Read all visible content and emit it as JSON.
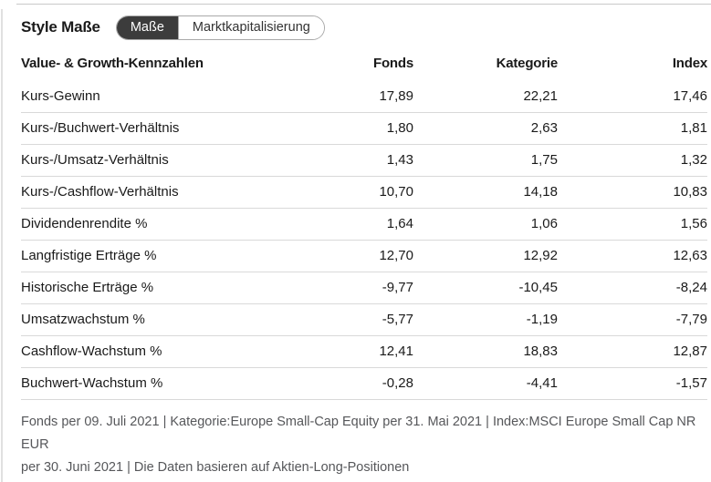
{
  "header": {
    "title": "Style Maße",
    "tabs": [
      {
        "label": "Maße",
        "active": true
      },
      {
        "label": "Marktkapitalisierung",
        "active": false
      }
    ]
  },
  "table": {
    "columns": [
      "Value- & Growth-Kennzahlen",
      "Fonds",
      "Kategorie",
      "Index"
    ],
    "rows": [
      {
        "label": "Kurs-Gewinn",
        "fonds": "17,89",
        "kategorie": "22,21",
        "index": "17,46"
      },
      {
        "label": "Kurs-/Buchwert-Verhältnis",
        "fonds": "1,80",
        "kategorie": "2,63",
        "index": "1,81"
      },
      {
        "label": "Kurs-/Umsatz-Verhältnis",
        "fonds": "1,43",
        "kategorie": "1,75",
        "index": "1,32"
      },
      {
        "label": "Kurs-/Cashflow-Verhältnis",
        "fonds": "10,70",
        "kategorie": "14,18",
        "index": "10,83"
      },
      {
        "label": "Dividendenrendite %",
        "fonds": "1,64",
        "kategorie": "1,06",
        "index": "1,56"
      },
      {
        "label": "Langfristige Erträge %",
        "fonds": "12,70",
        "kategorie": "12,92",
        "index": "12,63"
      },
      {
        "label": "Historische Erträge %",
        "fonds": "-9,77",
        "kategorie": "-10,45",
        "index": "-8,24"
      },
      {
        "label": "Umsatzwachstum %",
        "fonds": "-5,77",
        "kategorie": "-1,19",
        "index": "-7,79"
      },
      {
        "label": "Cashflow-Wachstum %",
        "fonds": "12,41",
        "kategorie": "18,83",
        "index": "12,87"
      },
      {
        "label": "Buchwert-Wachstum %",
        "fonds": "-0,28",
        "kategorie": "-4,41",
        "index": "-1,57"
      }
    ]
  },
  "footnote": {
    "lines": [
      "Fonds per 09. Juli 2021 | Kategorie:Europe Small-Cap Equity per 31. Mai 2021 | Index:MSCI Europe Small Cap NR EUR",
      "per 30. Juni 2021 | Die Daten basieren auf Aktien-Long-Positionen"
    ]
  },
  "colors": {
    "tab_active_bg": "#3c3c3c",
    "tab_active_text": "#ffffff",
    "tab_border": "#a9a9a9",
    "row_divider": "#d9d9d9",
    "top_rule": "#c9c9c9",
    "text": "#1a1a1a",
    "footnote_text": "#56575a"
  }
}
